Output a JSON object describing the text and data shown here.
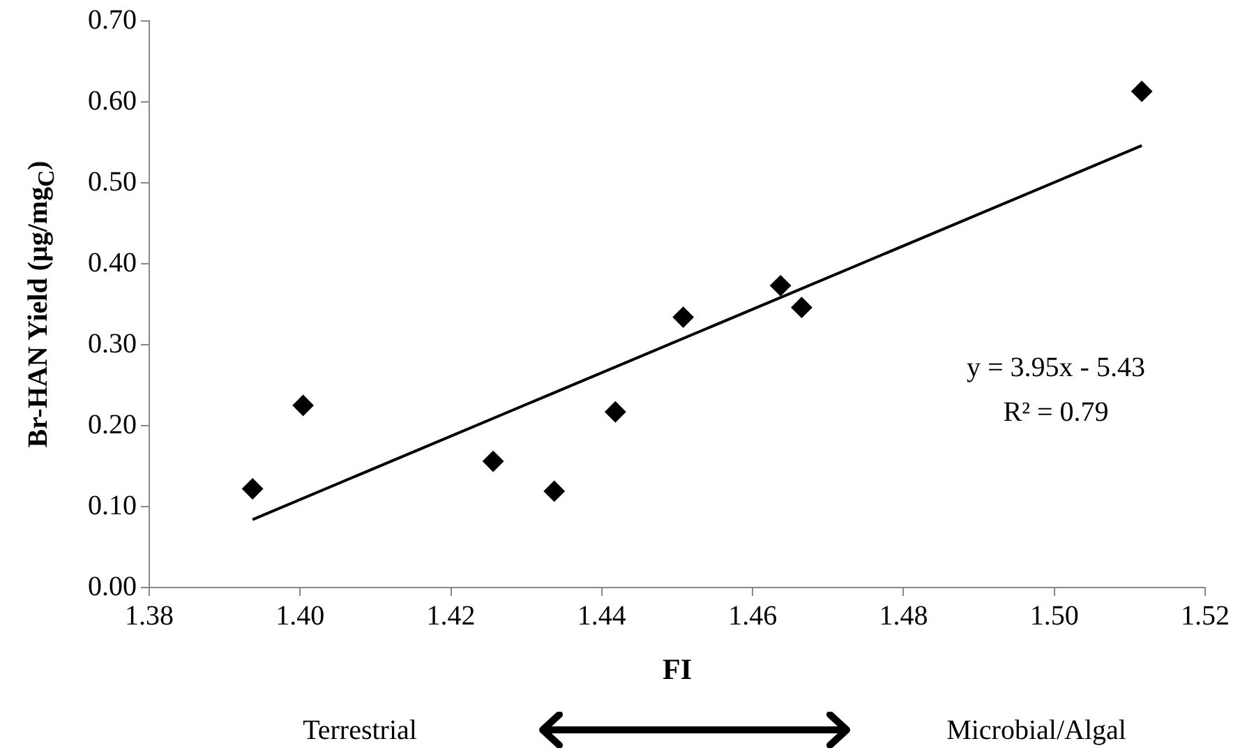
{
  "chart_data": {
    "type": "scatter",
    "xlabel": "FI",
    "ylabel": "Br-HAN Yield (μg/mg$_{C}$)",
    "series": [
      {
        "color": "#000000",
        "x": [
          1.3937,
          1.4004,
          1.4256,
          1.4337,
          1.4418,
          1.4508,
          1.4637,
          1.4665,
          1.5116
        ],
        "values": [
          0.122,
          0.225,
          0.156,
          0.119,
          0.217,
          0.334,
          0.373,
          0.346,
          0.613
        ]
      },
      {
        "type": "line",
        "color": "#000000",
        "marker": "none",
        "x": [
          1.3937,
          1.5116
        ],
        "values": [
          0.084,
          0.546
        ]
      }
    ],
    "marker": "diamond",
    "xlim": [
      1.38,
      1.52
    ],
    "xticks": [
      {
        "value": 1.38,
        "label": "1.38"
      },
      {
        "value": 1.4,
        "label": "1.40"
      },
      {
        "value": 1.42,
        "label": "1.42"
      },
      {
        "value": 1.44,
        "label": "1.44"
      },
      {
        "value": 1.46,
        "label": "1.46"
      },
      {
        "value": 1.48,
        "label": "1.48"
      },
      {
        "value": 1.5,
        "label": "1.50"
      },
      {
        "value": 1.52,
        "label": "1.52"
      }
    ],
    "ylim": [
      0,
      0.7
    ],
    "yticks": [
      {
        "value": 0,
        "label": "0.00"
      },
      {
        "value": 0.1,
        "label": "0.10"
      },
      {
        "value": 0.2,
        "label": "0.20"
      },
      {
        "value": 0.3,
        "label": "0.30"
      },
      {
        "value": 0.4,
        "label": "0.40"
      },
      {
        "value": 0.5,
        "label": "0.50"
      },
      {
        "value": 0.6,
        "label": "0.60"
      },
      {
        "value": 0.7,
        "label": "0.70"
      }
    ],
    "grid": false,
    "legend": false,
    "annotations": [
      "y = 3.95x - 5.43",
      "R² = 0.79",
      "Terrestrial",
      "Microbial/Algal"
    ]
  }
}
